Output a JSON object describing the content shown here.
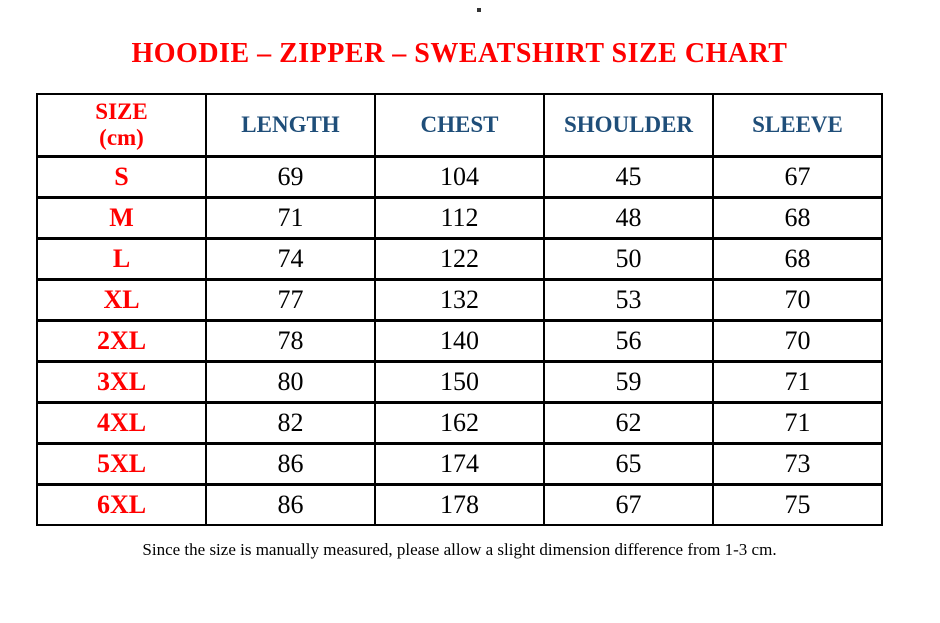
{
  "title": "HOODIE – ZIPPER – SWEATSHIRT SIZE CHART",
  "stray_mark": "dot-mark",
  "table": {
    "size_header_line1": "SIZE",
    "size_header_line2": "(cm)",
    "columns": [
      "LENGTH",
      "CHEST",
      "SHOULDER",
      "SLEEVE"
    ],
    "rows": [
      [
        "S",
        "69",
        "104",
        "45",
        "67"
      ],
      [
        "M",
        "71",
        "112",
        "48",
        "68"
      ],
      [
        "L",
        "74",
        "122",
        "50",
        "68"
      ],
      [
        "XL",
        "77",
        "132",
        "53",
        "70"
      ],
      [
        "2XL",
        "78",
        "140",
        "56",
        "70"
      ],
      [
        "3XL",
        "80",
        "150",
        "59",
        "71"
      ],
      [
        "4XL",
        "82",
        "162",
        "62",
        "71"
      ],
      [
        "5XL",
        "86",
        "174",
        "65",
        "73"
      ],
      [
        "6XL",
        "86",
        "178",
        "67",
        "75"
      ]
    ]
  },
  "footer_note": "Since the size is manually measured, please allow a slight dimension difference from 1-3 cm.",
  "colors": {
    "accent_red": "#FF0000",
    "header_blue": "#1F4E79",
    "text_black": "#000000",
    "border_black": "#000000",
    "background": "#FFFFFF"
  }
}
